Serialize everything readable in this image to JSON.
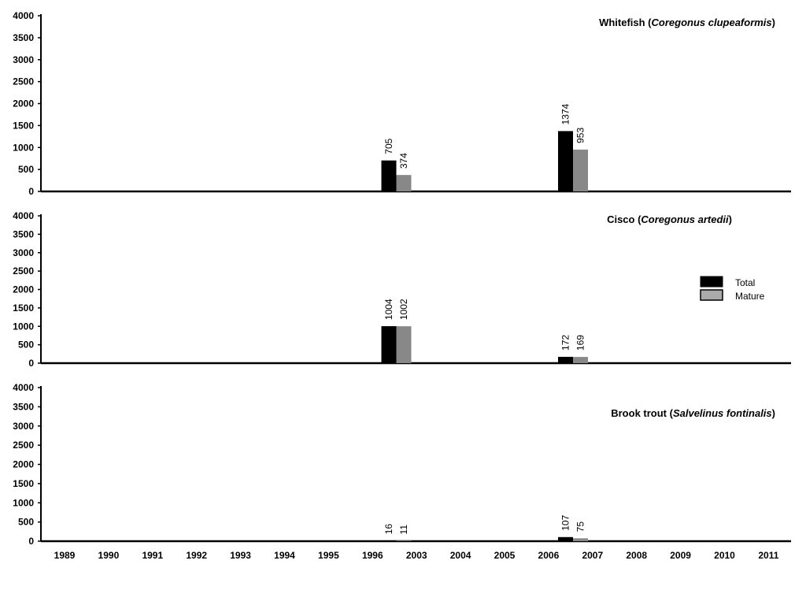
{
  "chart_data": [
    {
      "type": "bar",
      "title_common": "Whitefish",
      "title_latin": "Coregonus clupeaformis",
      "categories": [
        "1989",
        "1990",
        "1991",
        "1992",
        "1993",
        "1994",
        "1995",
        "1996",
        "2003",
        "2004",
        "2005",
        "2006",
        "2007",
        "2008",
        "2009",
        "2010",
        "2011"
      ],
      "ylim": [
        0,
        4000
      ],
      "yticks": [
        0,
        500,
        1000,
        1500,
        2000,
        2500,
        3000,
        3500,
        4000
      ],
      "series": [
        {
          "name": "Total",
          "color": "#000000",
          "values": [
            0,
            0,
            0,
            0,
            0,
            0,
            0,
            0,
            0,
            705,
            0,
            0,
            0,
            1374,
            0,
            0,
            0
          ],
          "labels": [
            "",
            "",
            "",
            "",
            "",
            "",
            "",
            "",
            "",
            "705",
            "",
            "",
            "",
            "1374",
            "",
            "",
            ""
          ]
        },
        {
          "name": "Mature",
          "color": "#888888",
          "values": [
            0,
            0,
            0,
            0,
            0,
            0,
            0,
            0,
            0,
            374,
            0,
            0,
            0,
            953,
            0,
            0,
            0
          ],
          "labels": [
            "",
            "",
            "",
            "",
            "",
            "",
            "",
            "",
            "",
            "374",
            "",
            "",
            "",
            "953",
            "",
            "",
            ""
          ]
        }
      ]
    },
    {
      "type": "bar",
      "title_common": "Cisco",
      "title_latin": "Coregonus artedii",
      "categories": [
        "1989",
        "1990",
        "1991",
        "1992",
        "1993",
        "1994",
        "1995",
        "1996",
        "2003",
        "2004",
        "2005",
        "2006",
        "2007",
        "2008",
        "2009",
        "2010",
        "2011"
      ],
      "ylim": [
        0,
        4000
      ],
      "yticks": [
        0,
        500,
        1000,
        1500,
        2000,
        2500,
        3000,
        3500,
        4000
      ],
      "series": [
        {
          "name": "Total",
          "color": "#000000",
          "values": [
            0,
            0,
            0,
            0,
            0,
            0,
            0,
            0,
            0,
            1004,
            0,
            0,
            0,
            172,
            0,
            0,
            0
          ],
          "labels": [
            "",
            "",
            "",
            "",
            "",
            "",
            "",
            "",
            "",
            "1004",
            "",
            "",
            "",
            "172",
            "",
            "",
            ""
          ]
        },
        {
          "name": "Mature",
          "color": "#888888",
          "values": [
            0,
            0,
            0,
            0,
            0,
            0,
            0,
            0,
            0,
            1002,
            0,
            0,
            0,
            169,
            0,
            0,
            0
          ],
          "labels": [
            "",
            "",
            "",
            "",
            "",
            "",
            "",
            "",
            "",
            "1002",
            "",
            "",
            "",
            "169",
            "",
            "",
            ""
          ]
        }
      ]
    },
    {
      "type": "bar",
      "title_common": "Brook trout",
      "title_latin": "Salvelinus fontinalis",
      "categories": [
        "1989",
        "1990",
        "1991",
        "1992",
        "1993",
        "1994",
        "1995",
        "1996",
        "2003",
        "2004",
        "2005",
        "2006",
        "2007",
        "2008",
        "2009",
        "2010",
        "2011"
      ],
      "ylim": [
        0,
        4000
      ],
      "yticks": [
        0,
        500,
        1000,
        1500,
        2000,
        2500,
        3000,
        3500,
        4000
      ],
      "series": [
        {
          "name": "Total",
          "color": "#000000",
          "values": [
            0,
            0,
            0,
            0,
            0,
            0,
            0,
            0,
            0,
            16,
            0,
            0,
            0,
            107,
            0,
            0,
            0
          ],
          "labels": [
            "",
            "",
            "",
            "",
            "",
            "",
            "",
            "",
            "",
            "16",
            "",
            "",
            "",
            "107",
            "",
            "",
            ""
          ]
        },
        {
          "name": "Mature",
          "color": "#888888",
          "values": [
            0,
            0,
            0,
            0,
            0,
            0,
            0,
            0,
            0,
            11,
            0,
            0,
            0,
            75,
            0,
            0,
            0
          ],
          "labels": [
            "",
            "",
            "",
            "",
            "",
            "",
            "",
            "",
            "",
            "11",
            "",
            "",
            "",
            "75",
            "",
            "",
            ""
          ]
        }
      ]
    }
  ],
  "legend": {
    "position": "right",
    "items": [
      {
        "label": "Total",
        "color": "#000000"
      },
      {
        "label": "Mature",
        "color": "#aaaaaa"
      }
    ]
  }
}
